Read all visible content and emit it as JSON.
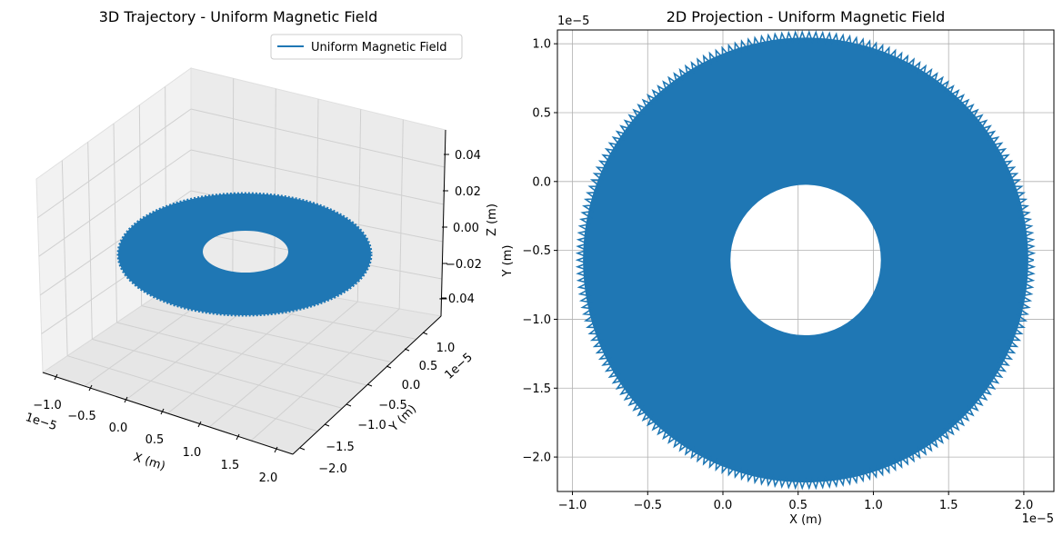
{
  "chart_data": [
    {
      "type": "line",
      "projection": "3d",
      "title": "3D Trajectory - Uniform Magnetic Field",
      "xlabel": "X (m)",
      "ylabel": "Y (m)",
      "zlabel": "Z (m)",
      "x_offset_text": "1e−5",
      "y_offset_text": "1e−5",
      "x_ticks": [
        "−1.0",
        "−0.5",
        "0.0",
        "0.5",
        "1.0",
        "1.5",
        "2.0"
      ],
      "y_ticks": [
        "−2.0",
        "−1.5",
        "−1.0",
        "−0.5",
        "0.0",
        "0.5",
        "1.0"
      ],
      "z_ticks": [
        "−0.04",
        "−0.02",
        "0.00",
        "0.02",
        "0.04"
      ],
      "zlim": [
        -0.05,
        0.05
      ],
      "legend": {
        "label": "Uniform Magnetic Field",
        "placement": "upper right"
      },
      "series": [
        {
          "name": "Uniform Magnetic Field",
          "color": "#1f77b4",
          "center_x": 5.5e-06,
          "center_y": -5.7e-06,
          "z": 0,
          "inner_radius": 5e-06,
          "outer_radius": 1.48e-05
        }
      ]
    },
    {
      "type": "line",
      "title": "2D Projection - Uniform Magnetic Field",
      "xlabel": "X (m)",
      "ylabel": "Y (m)",
      "x_offset_text": "1e−5",
      "y_offset_text": "1e−5",
      "xlim": [
        -1.1e-05,
        2.2e-05
      ],
      "ylim": [
        -2.25e-05,
        1.1e-05
      ],
      "x_ticks": [
        {
          "value": -1e-05,
          "label": "−1.0"
        },
        {
          "value": -5e-06,
          "label": "−0.5"
        },
        {
          "value": 0.0,
          "label": "0.0"
        },
        {
          "value": 5e-06,
          "label": "0.5"
        },
        {
          "value": 1e-05,
          "label": "1.0"
        },
        {
          "value": 1.5e-05,
          "label": "1.5"
        },
        {
          "value": 2e-05,
          "label": "2.0"
        }
      ],
      "y_ticks": [
        {
          "value": -2e-05,
          "label": "−2.0"
        },
        {
          "value": -1.5e-05,
          "label": "−1.5"
        },
        {
          "value": -1e-05,
          "label": "−1.0"
        },
        {
          "value": -5e-06,
          "label": "−0.5"
        },
        {
          "value": 0.0,
          "label": "0.0"
        },
        {
          "value": 5e-06,
          "label": "0.5"
        },
        {
          "value": 1e-05,
          "label": "1.0"
        }
      ],
      "grid": true,
      "series": [
        {
          "name": "Uniform Magnetic Field",
          "color": "#1f77b4",
          "center_x": 5.5e-06,
          "center_y": -5.7e-06,
          "inner_radius": 5e-06,
          "outer_radius": 1.48e-05
        }
      ]
    }
  ]
}
